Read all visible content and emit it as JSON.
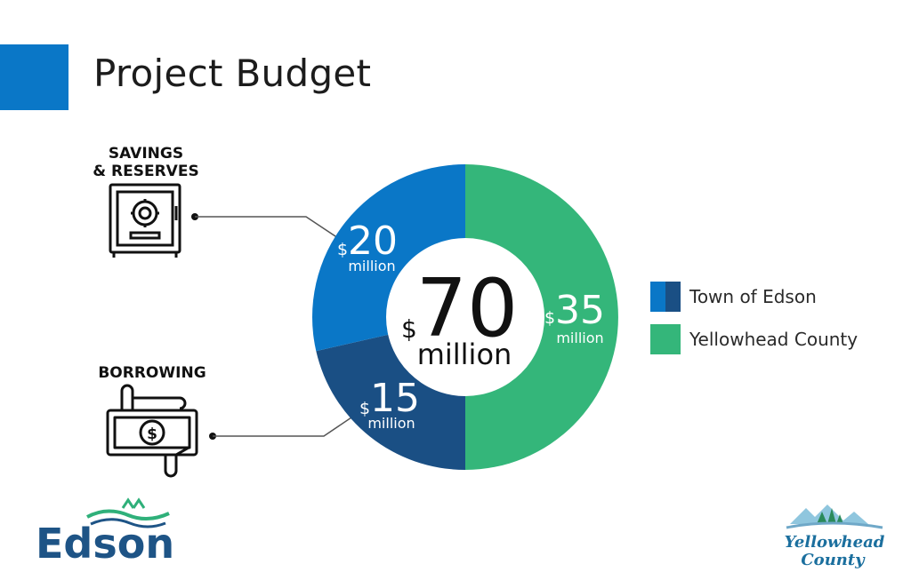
{
  "page": {
    "title": "Project Budget"
  },
  "categories": {
    "savings_label": "SAVINGS\n& RESERVES",
    "borrowing_label": "BORROWING"
  },
  "chart_data": {
    "type": "pie",
    "center": {
      "currency": "$",
      "value": "70",
      "unit": "million"
    },
    "slices": [
      {
        "name": "Town of Edson",
        "label": "Savings & Reserves",
        "value": 20,
        "currency": "$",
        "unit": "million",
        "color": "#0a77c7"
      },
      {
        "name": "Town of Edson",
        "label": "Borrowing",
        "value": 15,
        "currency": "$",
        "unit": "million",
        "color": "#1a4f84"
      },
      {
        "name": "Yellowhead County",
        "value": 35,
        "currency": "$",
        "unit": "million",
        "color": "#34b67a"
      }
    ],
    "total": 70
  },
  "legend": {
    "items": [
      {
        "label": "Town of Edson",
        "colors": [
          "#0a77c7",
          "#1a4f84"
        ]
      },
      {
        "label": "Yellowhead County",
        "colors": [
          "#34b67a"
        ]
      }
    ],
    "placement": "right"
  },
  "icons": {
    "savings": "safe-icon",
    "borrowing": "money-hand-icon"
  },
  "logos": {
    "edson": {
      "text": "Edson",
      "color": "#1e5486",
      "accent": "#2fb07a"
    },
    "yellowhead": {
      "line1": "Yellowhead",
      "line2": "County",
      "color": "#1b6f9e"
    }
  },
  "colors": {
    "accent": "#0a77c7",
    "leader_line": "#555555"
  }
}
